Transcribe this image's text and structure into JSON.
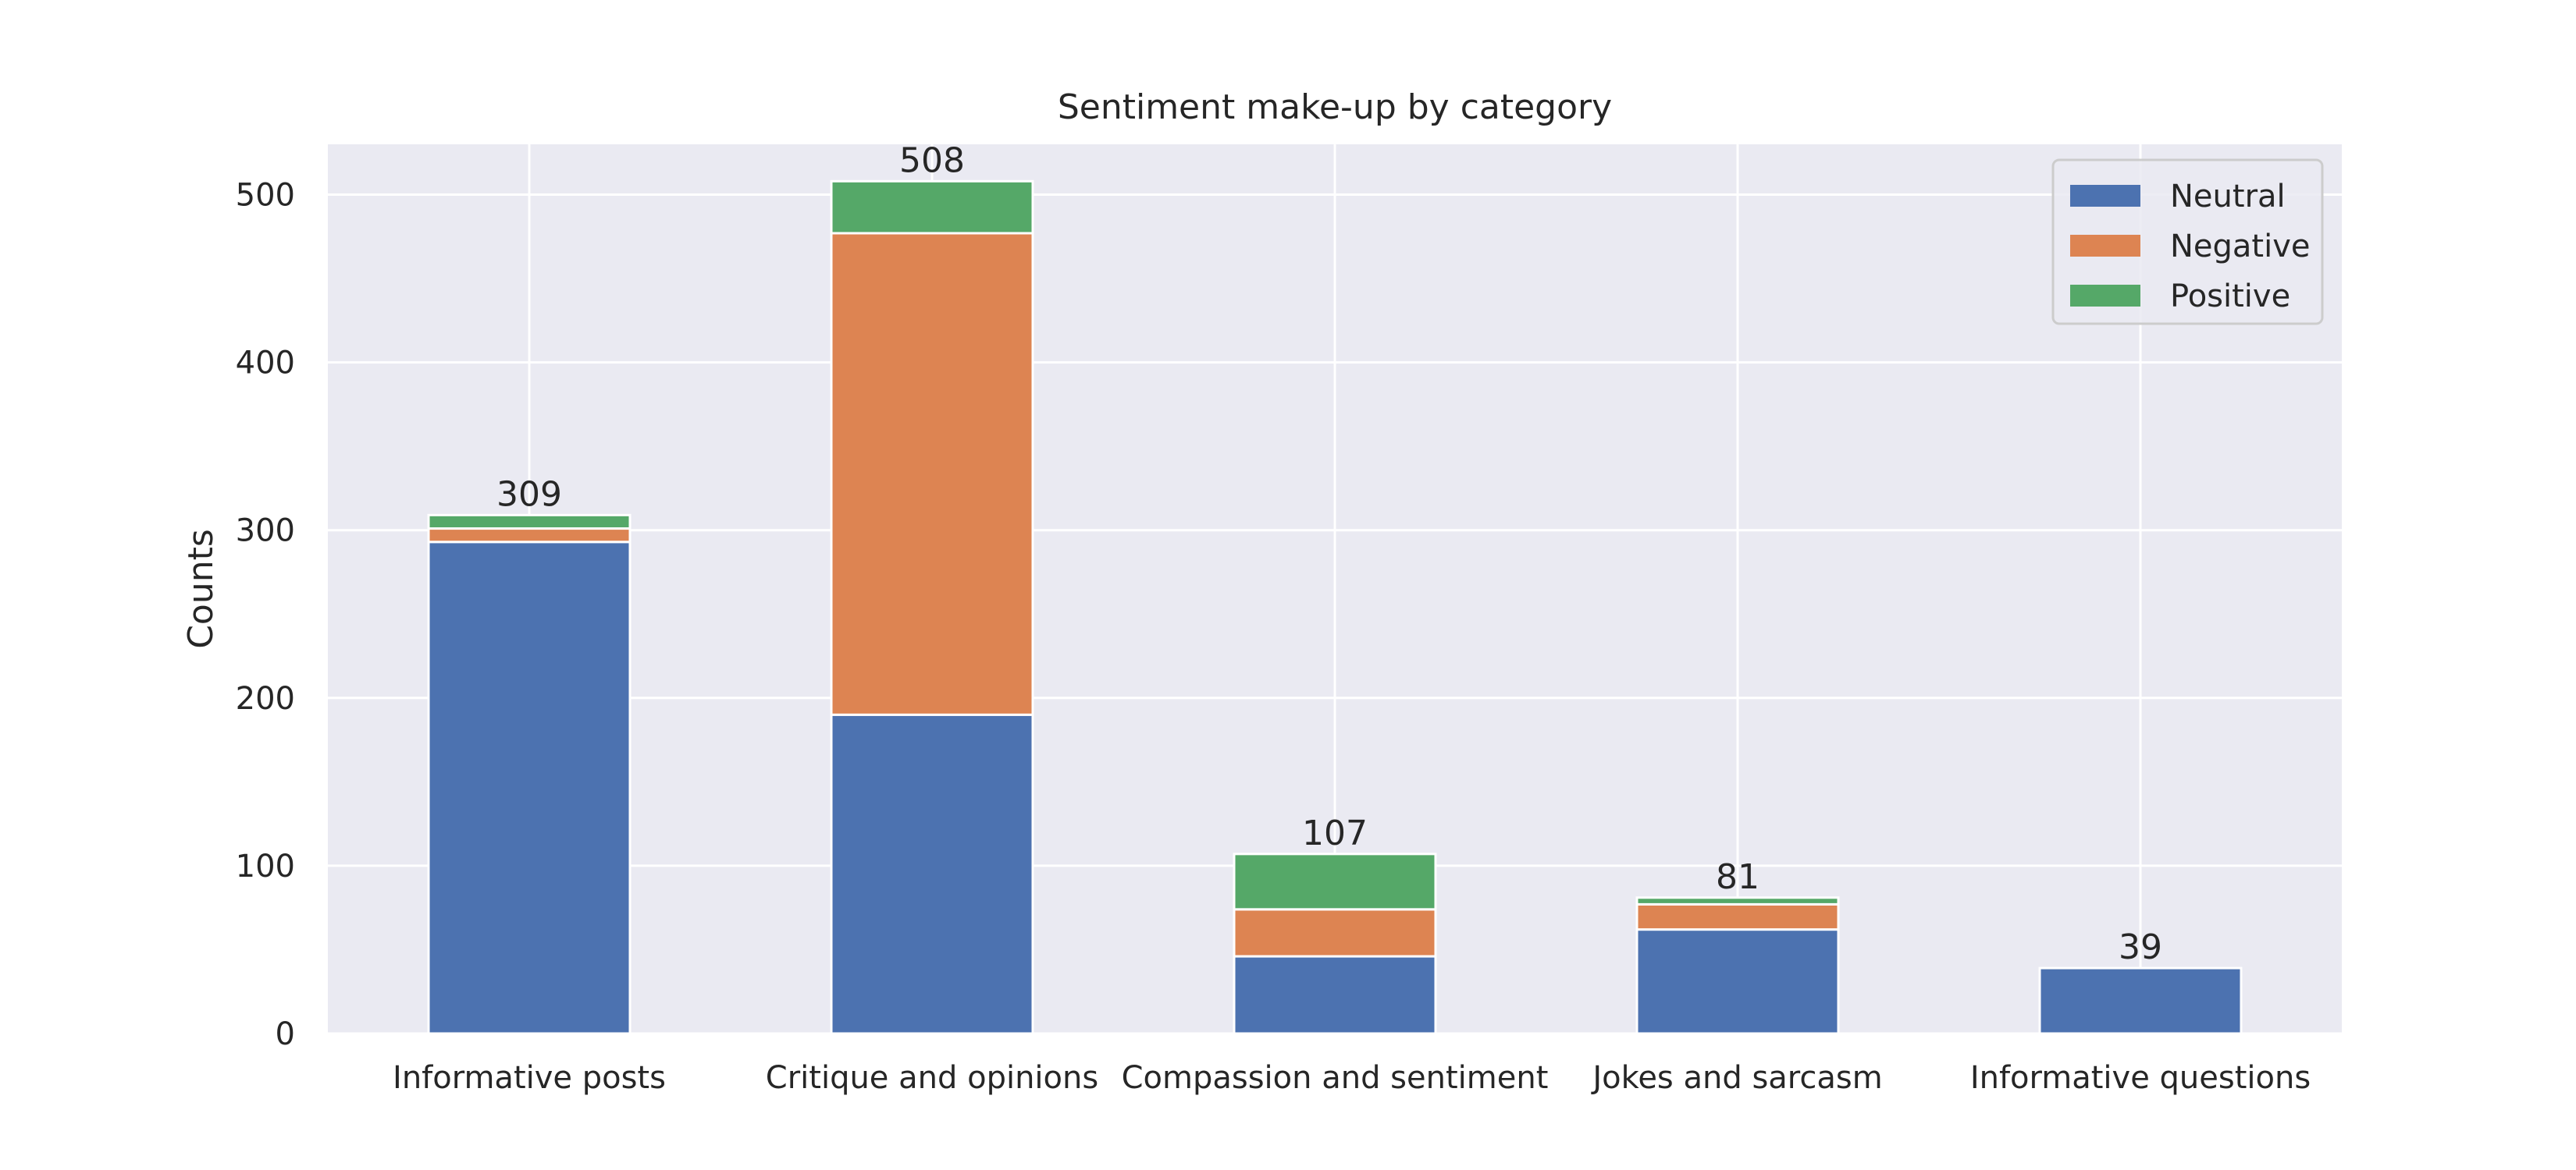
{
  "chart_data": {
    "type": "bar",
    "stacked": true,
    "title": "Sentiment make-up by category",
    "xlabel": "",
    "ylabel": "Counts",
    "ylim": [
      0,
      530
    ],
    "yticks": [
      0,
      100,
      200,
      300,
      400,
      500
    ],
    "grid": true,
    "legend_position": "top-right",
    "categories": [
      "Informative posts",
      "Critique and opinions",
      "Compassion and sentiment",
      "Jokes and sarcasm",
      "Informative questions"
    ],
    "series": [
      {
        "name": "Neutral",
        "color": "#4c72b0",
        "values": [
          293,
          190,
          46,
          62,
          39
        ]
      },
      {
        "name": "Negative",
        "color": "#dd8452",
        "values": [
          8,
          287,
          28,
          15,
          0
        ]
      },
      {
        "name": "Positive",
        "color": "#55a868",
        "values": [
          8,
          31,
          33,
          4,
          0
        ]
      }
    ],
    "totals": [
      309,
      508,
      107,
      81,
      39
    ],
    "colors": {
      "plot_background": "#eaeaf2",
      "grid": "#ffffff"
    }
  }
}
